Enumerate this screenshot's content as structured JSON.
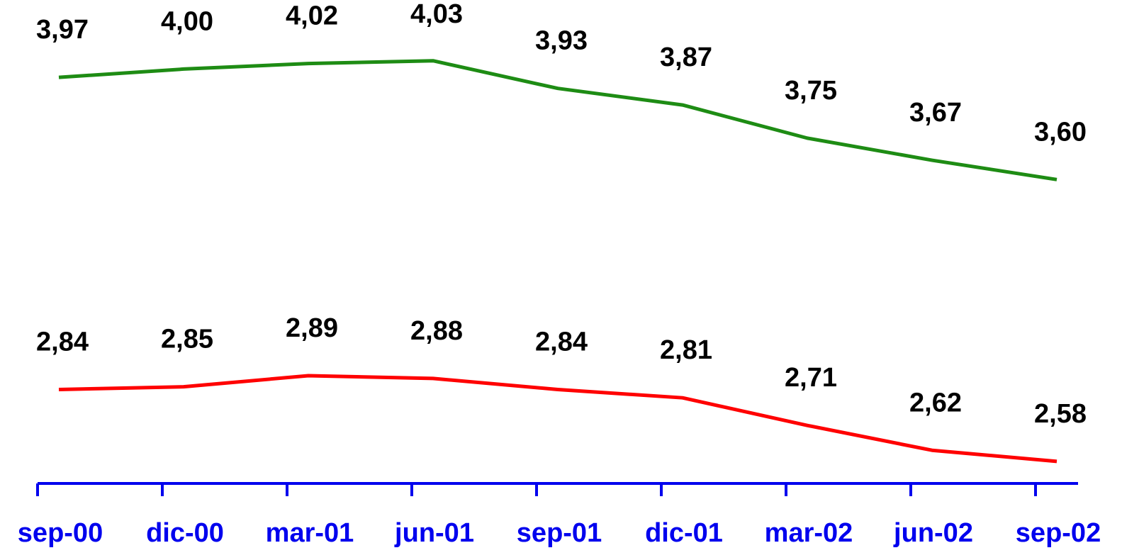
{
  "chart_data": {
    "type": "line",
    "categories": [
      "sep-00",
      "dic-00",
      "mar-01",
      "jun-01",
      "sep-01",
      "dic-01",
      "mar-02",
      "jun-02",
      "sep-02"
    ],
    "series": [
      {
        "color": "#1e8c14",
        "values": [
          3.97,
          4.0,
          4.02,
          4.03,
          3.93,
          3.87,
          3.75,
          3.67,
          3.6
        ],
        "value_labels": [
          "3,97",
          "4,00",
          "4,02",
          "4,03",
          "3,93",
          "3,87",
          "3,75",
          "3,67",
          "3,60"
        ]
      },
      {
        "color": "#ff0000",
        "values": [
          2.84,
          2.85,
          2.89,
          2.88,
          2.84,
          2.81,
          2.71,
          2.62,
          2.58
        ],
        "value_labels": [
          "2,84",
          "2,85",
          "2,89",
          "2,88",
          "2,84",
          "2,81",
          "2,71",
          "2,62",
          "2,58"
        ]
      }
    ],
    "ylim": [
      2.5,
      4.25
    ],
    "axis_color": "#0000ee"
  }
}
